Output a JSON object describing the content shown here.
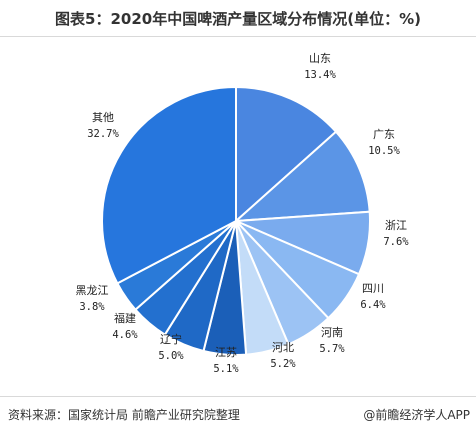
{
  "title": "图表5：2020年中国啤酒产量区域分布情况(单位：%)",
  "footer": {
    "source": "资料来源：国家统计局 前瞻产业研究院整理",
    "brand": "@前瞻经济学人APP"
  },
  "chart_data": {
    "type": "pie",
    "title": "图表5：2020年中国啤酒产量区域分布情况(单位：%)",
    "unit": "%",
    "slices": [
      {
        "label": "山东",
        "value": 13.4,
        "pct_text": "13.4%",
        "color": "#4a86e0"
      },
      {
        "label": "广东",
        "value": 10.5,
        "pct_text": "10.5%",
        "color": "#5b95e6"
      },
      {
        "label": "浙江",
        "value": 7.6,
        "pct_text": "7.6%",
        "color": "#7aabee"
      },
      {
        "label": "四川",
        "value": 6.4,
        "pct_text": "6.4%",
        "color": "#8ab8f2"
      },
      {
        "label": "河南",
        "value": 5.7,
        "pct_text": "5.7%",
        "color": "#9cc3f4"
      },
      {
        "label": "河北",
        "value": 5.2,
        "pct_text": "5.2%",
        "color": "#c3dcf8"
      },
      {
        "label": "江苏",
        "value": 5.1,
        "pct_text": "5.1%",
        "color": "#1b5fb8"
      },
      {
        "label": "辽宁",
        "value": 5.0,
        "pct_text": "5.0%",
        "color": "#1f69c6"
      },
      {
        "label": "福建",
        "value": 4.6,
        "pct_text": "4.6%",
        "color": "#2370cf"
      },
      {
        "label": "黑龙江",
        "value": 3.8,
        "pct_text": "3.8%",
        "color": "#2a7ad8"
      },
      {
        "label": "其他",
        "value": 32.7,
        "pct_text": "32.7%",
        "color": "#2676dd"
      }
    ]
  }
}
